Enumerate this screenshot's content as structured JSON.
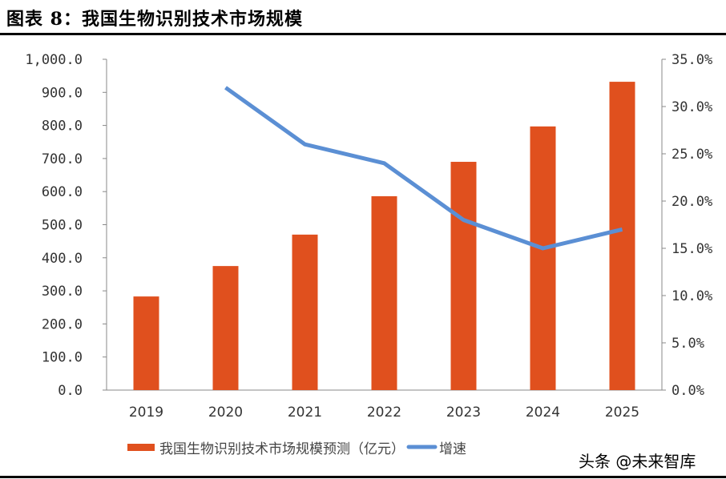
{
  "title": "图表 8：我国生物识别技术市场规模",
  "watermark": "头条 @未来智库",
  "chart_data": {
    "type": "bar+line",
    "categories": [
      "2019",
      "2020",
      "2021",
      "2022",
      "2023",
      "2024",
      "2025"
    ],
    "series": [
      {
        "name": "我国生物识别技术市场规模预测（亿元）",
        "type": "bar",
        "axis": "left",
        "color": "#E0501E",
        "values": [
          283,
          375,
          470,
          586,
          690,
          797,
          932
        ]
      },
      {
        "name": "增速",
        "type": "line",
        "axis": "right",
        "color": "#5B8FD4",
        "values": [
          null,
          32.0,
          26.0,
          24.0,
          18.0,
          15.0,
          17.0
        ]
      }
    ],
    "y_left": {
      "range": [
        0,
        1000
      ],
      "ticks": [
        "0.0",
        "100.0",
        "200.0",
        "300.0",
        "400.0",
        "500.0",
        "600.0",
        "700.0",
        "800.0",
        "900.0",
        "1,000.0"
      ]
    },
    "y_right": {
      "range": [
        0,
        35
      ],
      "ticks": [
        "0.0%",
        "5.0%",
        "10.0%",
        "15.0%",
        "20.0%",
        "25.0%",
        "30.0%",
        "35.0%"
      ]
    },
    "grid": false,
    "legend": "bottom"
  }
}
